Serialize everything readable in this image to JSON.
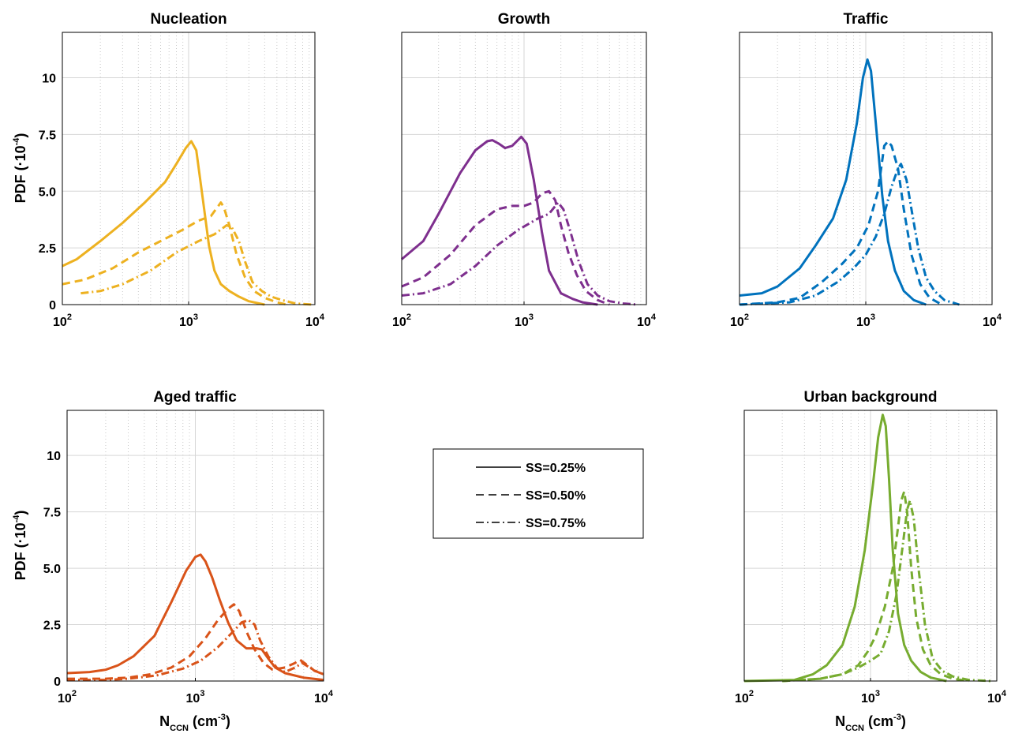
{
  "figure": {
    "ylabel_main": "PDF (·10",
    "ylabel_sup": "-4",
    "ylabel_end": ")",
    "xlabel_main": "N",
    "xlabel_sub": "CCN",
    "xlabel_mid": " (cm",
    "xlabel_sup": "-3",
    "xlabel_end": ")"
  },
  "legend": {
    "entries": [
      {
        "label": "SS=0.25%",
        "style": "solid"
      },
      {
        "label": "SS=0.50%",
        "style": "dashed"
      },
      {
        "label": "SS=0.75%",
        "style": "dashdot"
      }
    ]
  },
  "chart_data": [
    {
      "type": "line",
      "title": "Nucleation",
      "color": "#edb120",
      "xscale": "log",
      "xlim": [
        100,
        10000
      ],
      "ylim": [
        0,
        12
      ],
      "xticks": [
        100,
        1000,
        10000
      ],
      "yticks": [
        0,
        2.5,
        5.0,
        7.5,
        10
      ],
      "ytick_labels": [
        "0",
        "2.5",
        "5.0",
        "7.5",
        "10"
      ],
      "show_ytick_labels": true,
      "show_ylabel": true,
      "show_xlabel": false,
      "series": [
        {
          "style": "solid",
          "x": [
            100,
            130,
            200,
            300,
            450,
            650,
            800,
            950,
            1050,
            1150,
            1300,
            1450,
            1600,
            1800,
            2100,
            2500,
            3000,
            4000
          ],
          "y": [
            1.7,
            2.0,
            2.8,
            3.6,
            4.5,
            5.4,
            6.2,
            6.9,
            7.2,
            6.8,
            4.6,
            2.6,
            1.5,
            0.9,
            0.6,
            0.35,
            0.15,
            0.0
          ]
        },
        {
          "style": "dashed",
          "x": [
            100,
            150,
            250,
            400,
            600,
            900,
            1200,
            1500,
            1800,
            1900,
            2100,
            2400,
            2800,
            3300,
            4000,
            5000,
            6000
          ],
          "y": [
            0.9,
            1.1,
            1.6,
            2.3,
            2.8,
            3.3,
            3.7,
            3.9,
            4.5,
            4.3,
            3.5,
            2.2,
            1.2,
            0.6,
            0.3,
            0.1,
            0.0
          ]
        },
        {
          "style": "dashdot",
          "x": [
            140,
            200,
            300,
            500,
            800,
            1200,
            1600,
            2000,
            2200,
            2500,
            2800,
            3200,
            3800,
            4500,
            5500,
            7000,
            9500
          ],
          "y": [
            0.5,
            0.6,
            0.9,
            1.5,
            2.3,
            2.8,
            3.1,
            3.5,
            3.4,
            2.8,
            1.9,
            1.0,
            0.6,
            0.35,
            0.2,
            0.05,
            0.0
          ]
        }
      ]
    },
    {
      "type": "line",
      "title": "Growth",
      "color": "#7e2f8e",
      "xscale": "log",
      "xlim": [
        100,
        10000
      ],
      "ylim": [
        0,
        12
      ],
      "xticks": [
        100,
        1000,
        10000
      ],
      "yticks": [
        0,
        2.5,
        5.0,
        7.5,
        10
      ],
      "ytick_labels": [
        "0",
        "2.5",
        "5.0",
        "7.5",
        "10"
      ],
      "show_ytick_labels": false,
      "show_ylabel": false,
      "show_xlabel": false,
      "series": [
        {
          "style": "solid",
          "x": [
            100,
            150,
            200,
            300,
            400,
            500,
            550,
            620,
            700,
            800,
            950,
            1050,
            1200,
            1400,
            1600,
            2000,
            2500,
            3000,
            4000
          ],
          "y": [
            2.0,
            2.8,
            4.0,
            5.8,
            6.8,
            7.2,
            7.25,
            7.1,
            6.9,
            7.0,
            7.4,
            7.1,
            5.5,
            3.2,
            1.5,
            0.5,
            0.25,
            0.1,
            0.0
          ]
        },
        {
          "style": "dashed",
          "x": [
            100,
            150,
            250,
            400,
            600,
            800,
            1000,
            1200,
            1400,
            1600,
            1800,
            2000,
            2300,
            2700,
            3200,
            4000,
            5000
          ],
          "y": [
            0.8,
            1.2,
            2.2,
            3.5,
            4.2,
            4.35,
            4.35,
            4.5,
            4.9,
            5.0,
            4.6,
            3.5,
            2.3,
            1.3,
            0.6,
            0.2,
            0.0
          ]
        },
        {
          "style": "dashdot",
          "x": [
            100,
            150,
            250,
            400,
            600,
            900,
            1300,
            1600,
            1900,
            2100,
            2400,
            2800,
            3300,
            4000,
            5000,
            6500,
            8500
          ],
          "y": [
            0.4,
            0.5,
            0.9,
            1.7,
            2.6,
            3.3,
            3.8,
            4.0,
            4.5,
            4.2,
            3.2,
            1.9,
            0.9,
            0.4,
            0.15,
            0.05,
            0.0
          ]
        }
      ]
    },
    {
      "type": "line",
      "title": "Traffic",
      "color": "#0072bd",
      "xscale": "log",
      "xlim": [
        100,
        10000
      ],
      "ylim": [
        0,
        12
      ],
      "xticks": [
        100,
        1000,
        10000
      ],
      "yticks": [
        0,
        2.5,
        5.0,
        7.5,
        10
      ],
      "ytick_labels": [
        "0",
        "2.5",
        "5.0",
        "7.5",
        "10"
      ],
      "show_ytick_labels": false,
      "show_ylabel": false,
      "show_xlabel": false,
      "series": [
        {
          "style": "solid",
          "x": [
            100,
            150,
            200,
            300,
            400,
            550,
            700,
            850,
            950,
            1030,
            1100,
            1200,
            1350,
            1500,
            1700,
            2000,
            2400,
            3000
          ],
          "y": [
            0.4,
            0.5,
            0.8,
            1.6,
            2.6,
            3.8,
            5.5,
            8.0,
            10.0,
            10.8,
            10.3,
            8.0,
            4.8,
            2.8,
            1.5,
            0.6,
            0.2,
            0.0
          ]
        },
        {
          "style": "dashed",
          "x": [
            100,
            200,
            300,
            450,
            650,
            850,
            1050,
            1250,
            1400,
            1500,
            1600,
            1800,
            2000,
            2300,
            2700,
            3200,
            4000
          ],
          "y": [
            0.0,
            0.1,
            0.3,
            1.0,
            1.8,
            2.5,
            3.5,
            5.0,
            7.0,
            7.2,
            7.0,
            6.0,
            4.2,
            2.2,
            0.9,
            0.3,
            0.0
          ]
        },
        {
          "style": "dashdot",
          "x": [
            100,
            250,
            400,
            600,
            800,
            1000,
            1200,
            1400,
            1600,
            1800,
            1900,
            2100,
            2300,
            2600,
            3000,
            3500,
            4200,
            5500
          ],
          "y": [
            0.0,
            0.1,
            0.4,
            1.0,
            1.6,
            2.2,
            3.0,
            4.0,
            5.2,
            6.0,
            6.2,
            5.5,
            4.2,
            2.5,
            1.2,
            0.6,
            0.2,
            0.0
          ]
        }
      ]
    },
    {
      "type": "line",
      "title": "Aged traffic",
      "color": "#d95319",
      "xscale": "log",
      "xlim": [
        100,
        10000
      ],
      "ylim": [
        0,
        12
      ],
      "xticks": [
        100,
        1000,
        10000
      ],
      "yticks": [
        0,
        2.5,
        5.0,
        7.5,
        10
      ],
      "ytick_labels": [
        "0",
        "2.5",
        "5.0",
        "7.5",
        "10"
      ],
      "show_ytick_labels": true,
      "show_ylabel": true,
      "show_xlabel": true,
      "series": [
        {
          "style": "solid",
          "x": [
            100,
            150,
            200,
            250,
            330,
            480,
            650,
            850,
            1000,
            1100,
            1200,
            1350,
            1550,
            1800,
            2100,
            2500,
            3000,
            3300,
            3700,
            4200,
            5000,
            7000,
            10000
          ],
          "y": [
            0.35,
            0.4,
            0.5,
            0.7,
            1.1,
            2.0,
            3.5,
            4.9,
            5.5,
            5.6,
            5.3,
            4.6,
            3.6,
            2.6,
            1.8,
            1.45,
            1.45,
            1.4,
            1.0,
            0.6,
            0.35,
            0.15,
            0.05
          ]
        },
        {
          "style": "dashed",
          "x": [
            100,
            200,
            300,
            450,
            650,
            900,
            1200,
            1500,
            1800,
            2000,
            2200,
            2500,
            2900,
            3400,
            4000,
            5000,
            6000,
            6500,
            7500,
            8500,
            10000
          ],
          "y": [
            0.1,
            0.1,
            0.15,
            0.3,
            0.6,
            1.1,
            1.9,
            2.7,
            3.2,
            3.4,
            3.1,
            2.2,
            1.4,
            0.8,
            0.5,
            0.6,
            0.8,
            0.95,
            0.7,
            0.45,
            0.3
          ]
        },
        {
          "style": "dashdot",
          "x": [
            100,
            200,
            300,
            500,
            800,
            1100,
            1500,
            1900,
            2300,
            2600,
            2900,
            3200,
            3700,
            4300,
            5000,
            6000,
            6800,
            7800,
            9000,
            10000
          ],
          "y": [
            0.05,
            0.05,
            0.1,
            0.25,
            0.55,
            0.9,
            1.5,
            2.1,
            2.6,
            2.7,
            2.5,
            1.8,
            1.1,
            0.6,
            0.4,
            0.6,
            0.8,
            0.6,
            0.4,
            0.3
          ]
        }
      ]
    },
    {
      "type": "line",
      "title": "Urban background",
      "color": "#77ac30",
      "xscale": "log",
      "xlim": [
        100,
        10000
      ],
      "ylim": [
        0,
        12
      ],
      "xticks": [
        100,
        1000,
        10000
      ],
      "yticks": [
        0,
        2.5,
        5.0,
        7.5,
        10
      ],
      "ytick_labels": [
        "0",
        "2.5",
        "5.0",
        "7.5",
        "10"
      ],
      "show_ytick_labels": false,
      "show_ylabel": false,
      "show_xlabel": true,
      "series": [
        {
          "style": "solid",
          "x": [
            100,
            250,
            350,
            450,
            600,
            750,
            900,
            1050,
            1150,
            1250,
            1320,
            1400,
            1500,
            1650,
            1850,
            2100,
            2500,
            3000,
            4000
          ],
          "y": [
            0.0,
            0.05,
            0.3,
            0.7,
            1.6,
            3.3,
            5.8,
            8.8,
            10.8,
            11.8,
            11.3,
            9.0,
            5.8,
            3.0,
            1.6,
            0.9,
            0.4,
            0.15,
            0.0
          ]
        },
        {
          "style": "dashed",
          "x": [
            200,
            400,
            600,
            800,
            950,
            1100,
            1300,
            1500,
            1650,
            1750,
            1850,
            1950,
            2100,
            2300,
            2600,
            3000,
            3600,
            4500,
            6000
          ],
          "y": [
            0.0,
            0.1,
            0.3,
            0.7,
            1.3,
            2.0,
            3.3,
            5.0,
            6.8,
            8.0,
            8.4,
            7.5,
            5.0,
            2.8,
            1.4,
            0.7,
            0.3,
            0.1,
            0.0
          ]
        },
        {
          "style": "dashdot",
          "x": [
            200,
            400,
            600,
            800,
            1000,
            1200,
            1400,
            1600,
            1800,
            1950,
            2050,
            2200,
            2400,
            2700,
            3100,
            3700,
            4500,
            6000,
            9000
          ],
          "y": [
            0.0,
            0.1,
            0.3,
            0.6,
            0.9,
            1.2,
            2.2,
            3.8,
            6.0,
            7.6,
            8.0,
            7.2,
            5.0,
            2.5,
            1.0,
            0.45,
            0.2,
            0.05,
            0.0
          ]
        }
      ]
    }
  ]
}
